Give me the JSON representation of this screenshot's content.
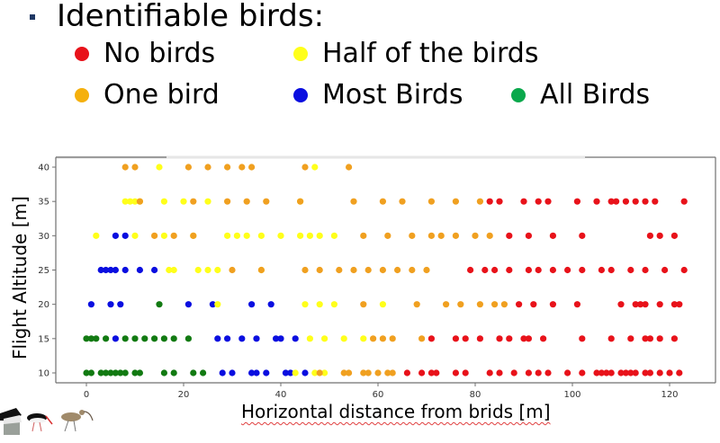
{
  "slide": {
    "heading": "Identifiable birds:",
    "legend": [
      {
        "label": "No birds",
        "color": "#e8121a"
      },
      {
        "label": "Half of the birds",
        "color": "#ffff1a"
      },
      {
        "label": "One bird",
        "color": "#f5a30c"
      },
      {
        "label": "Most Birds",
        "color": "#0a0ee0"
      },
      {
        "label": "All Birds",
        "color": "#0aa84c"
      }
    ]
  },
  "chart_data": {
    "type": "scatter",
    "title": "",
    "xlabel": "Horizontal distance from brids [m]",
    "ylabel": "Flight Altitude [m]",
    "xlim": [
      -6,
      130
    ],
    "ylim": [
      8.5,
      41.5
    ],
    "xticks": [
      0,
      20,
      40,
      60,
      80,
      100,
      120
    ],
    "yticks": [
      10,
      15,
      20,
      25,
      30,
      35,
      40
    ],
    "grid": false,
    "legend_position": "above chart (slide bullets)",
    "series": [
      {
        "name": "All Birds",
        "color": "#127a12",
        "points": [
          [
            0,
            10
          ],
          [
            1,
            10
          ],
          [
            3,
            10
          ],
          [
            4,
            10
          ],
          [
            5,
            10
          ],
          [
            6,
            10
          ],
          [
            7,
            10
          ],
          [
            8,
            10
          ],
          [
            10,
            10
          ],
          [
            11,
            10
          ],
          [
            16,
            10
          ],
          [
            18,
            10
          ],
          [
            22,
            10
          ],
          [
            24,
            10
          ],
          [
            0,
            15
          ],
          [
            1,
            15
          ],
          [
            2,
            15
          ],
          [
            4,
            15
          ],
          [
            8,
            15
          ],
          [
            10,
            15
          ],
          [
            12,
            15
          ],
          [
            14,
            15
          ],
          [
            16,
            15
          ],
          [
            18,
            15
          ],
          [
            21,
            15
          ],
          [
            15,
            20
          ]
        ]
      },
      {
        "name": "Most Birds",
        "color": "#0a0ee0",
        "points": [
          [
            28,
            10
          ],
          [
            30,
            10
          ],
          [
            34,
            10
          ],
          [
            35,
            10
          ],
          [
            37,
            10
          ],
          [
            41,
            10
          ],
          [
            42,
            10
          ],
          [
            45,
            10
          ],
          [
            6,
            15
          ],
          [
            27,
            15
          ],
          [
            29,
            15
          ],
          [
            32,
            15
          ],
          [
            35,
            15
          ],
          [
            39,
            15
          ],
          [
            40,
            15
          ],
          [
            43,
            15
          ],
          [
            1,
            20
          ],
          [
            5,
            20
          ],
          [
            7,
            20
          ],
          [
            21,
            20
          ],
          [
            26,
            20
          ],
          [
            34,
            20
          ],
          [
            38,
            20
          ],
          [
            3,
            25
          ],
          [
            4,
            25
          ],
          [
            5,
            25
          ],
          [
            6,
            25
          ],
          [
            8,
            25
          ],
          [
            11,
            25
          ],
          [
            14,
            25
          ],
          [
            6,
            30
          ],
          [
            8,
            30
          ]
        ]
      },
      {
        "name": "Half of the birds",
        "color": "#ffff1a",
        "points": [
          [
            43,
            10
          ],
          [
            47,
            10
          ],
          [
            49,
            10
          ],
          [
            46,
            15
          ],
          [
            49,
            15
          ],
          [
            53,
            15
          ],
          [
            57,
            15
          ],
          [
            27,
            20
          ],
          [
            45,
            20
          ],
          [
            48,
            20
          ],
          [
            51,
            20
          ],
          [
            61,
            20
          ],
          [
            17,
            25
          ],
          [
            18,
            25
          ],
          [
            23,
            25
          ],
          [
            25,
            25
          ],
          [
            27,
            25
          ],
          [
            36,
            25
          ],
          [
            2,
            30
          ],
          [
            10,
            30
          ],
          [
            16,
            30
          ],
          [
            22,
            30
          ],
          [
            29,
            30
          ],
          [
            31,
            30
          ],
          [
            33,
            30
          ],
          [
            36,
            30
          ],
          [
            40,
            30
          ],
          [
            44,
            30
          ],
          [
            46,
            30
          ],
          [
            48,
            30
          ],
          [
            51,
            30
          ],
          [
            8,
            35
          ],
          [
            9,
            35
          ],
          [
            10,
            35
          ],
          [
            11,
            35
          ],
          [
            16,
            35
          ],
          [
            20,
            35
          ],
          [
            25,
            35
          ],
          [
            44,
            35
          ],
          [
            15,
            40
          ],
          [
            47,
            40
          ]
        ]
      },
      {
        "name": "One bird",
        "color": "#f0a020",
        "points": [
          [
            48,
            10
          ],
          [
            53,
            10
          ],
          [
            54,
            10
          ],
          [
            57,
            10
          ],
          [
            58,
            10
          ],
          [
            60,
            10
          ],
          [
            62,
            10
          ],
          [
            63,
            10
          ],
          [
            59,
            15
          ],
          [
            61,
            15
          ],
          [
            63,
            15
          ],
          [
            69,
            15
          ],
          [
            57,
            20
          ],
          [
            68,
            20
          ],
          [
            74,
            20
          ],
          [
            77,
            20
          ],
          [
            81,
            20
          ],
          [
            84,
            20
          ],
          [
            86,
            20
          ],
          [
            30,
            25
          ],
          [
            36,
            25
          ],
          [
            45,
            25
          ],
          [
            48,
            25
          ],
          [
            52,
            25
          ],
          [
            55,
            25
          ],
          [
            58,
            25
          ],
          [
            61,
            25
          ],
          [
            64,
            25
          ],
          [
            67,
            25
          ],
          [
            70,
            25
          ],
          [
            14,
            30
          ],
          [
            18,
            30
          ],
          [
            22,
            30
          ],
          [
            57,
            30
          ],
          [
            62,
            30
          ],
          [
            67,
            30
          ],
          [
            71,
            30
          ],
          [
            73,
            30
          ],
          [
            76,
            30
          ],
          [
            80,
            30
          ],
          [
            83,
            30
          ],
          [
            11,
            35
          ],
          [
            22,
            35
          ],
          [
            29,
            35
          ],
          [
            33,
            35
          ],
          [
            37,
            35
          ],
          [
            44,
            35
          ],
          [
            55,
            35
          ],
          [
            61,
            35
          ],
          [
            65,
            35
          ],
          [
            71,
            35
          ],
          [
            76,
            35
          ],
          [
            81,
            35
          ],
          [
            8,
            40
          ],
          [
            10,
            40
          ],
          [
            21,
            40
          ],
          [
            25,
            40
          ],
          [
            29,
            40
          ],
          [
            32,
            40
          ],
          [
            34,
            40
          ],
          [
            45,
            40
          ],
          [
            54,
            40
          ]
        ]
      },
      {
        "name": "No birds",
        "color": "#e8121a",
        "points": [
          [
            66,
            10
          ],
          [
            69,
            10
          ],
          [
            71,
            10
          ],
          [
            72,
            10
          ],
          [
            76,
            10
          ],
          [
            78,
            10
          ],
          [
            83,
            10
          ],
          [
            85,
            10
          ],
          [
            88,
            10
          ],
          [
            91,
            10
          ],
          [
            93,
            10
          ],
          [
            95,
            10
          ],
          [
            99,
            10
          ],
          [
            102,
            10
          ],
          [
            105,
            10
          ],
          [
            106,
            10
          ],
          [
            107,
            10
          ],
          [
            108,
            10
          ],
          [
            110,
            10
          ],
          [
            111,
            10
          ],
          [
            112,
            10
          ],
          [
            113,
            10
          ],
          [
            115,
            10
          ],
          [
            116,
            10
          ],
          [
            118,
            10
          ],
          [
            120,
            10
          ],
          [
            122,
            10
          ],
          [
            71,
            15
          ],
          [
            76,
            15
          ],
          [
            78,
            15
          ],
          [
            81,
            15
          ],
          [
            85,
            15
          ],
          [
            87,
            15
          ],
          [
            90,
            15
          ],
          [
            91,
            15
          ],
          [
            94,
            15
          ],
          [
            102,
            15
          ],
          [
            108,
            15
          ],
          [
            112,
            15
          ],
          [
            115,
            15
          ],
          [
            116,
            15
          ],
          [
            118,
            15
          ],
          [
            121,
            15
          ],
          [
            89,
            20
          ],
          [
            92,
            20
          ],
          [
            96,
            20
          ],
          [
            101,
            20
          ],
          [
            110,
            20
          ],
          [
            113,
            20
          ],
          [
            114,
            20
          ],
          [
            115,
            20
          ],
          [
            118,
            20
          ],
          [
            121,
            20
          ],
          [
            122,
            20
          ],
          [
            79,
            25
          ],
          [
            82,
            25
          ],
          [
            84,
            25
          ],
          [
            87,
            25
          ],
          [
            91,
            25
          ],
          [
            93,
            25
          ],
          [
            96,
            25
          ],
          [
            99,
            25
          ],
          [
            102,
            25
          ],
          [
            106,
            25
          ],
          [
            108,
            25
          ],
          [
            112,
            25
          ],
          [
            115,
            25
          ],
          [
            119,
            25
          ],
          [
            123,
            25
          ],
          [
            87,
            30
          ],
          [
            91,
            30
          ],
          [
            96,
            30
          ],
          [
            102,
            30
          ],
          [
            116,
            30
          ],
          [
            118,
            30
          ],
          [
            121,
            30
          ],
          [
            83,
            35
          ],
          [
            85,
            35
          ],
          [
            90,
            35
          ],
          [
            93,
            35
          ],
          [
            95,
            35
          ],
          [
            101,
            35
          ],
          [
            105,
            35
          ],
          [
            108,
            35
          ],
          [
            109,
            35
          ],
          [
            111,
            35
          ],
          [
            113,
            35
          ],
          [
            115,
            35
          ],
          [
            117,
            35
          ],
          [
            123,
            35
          ]
        ]
      }
    ]
  }
}
